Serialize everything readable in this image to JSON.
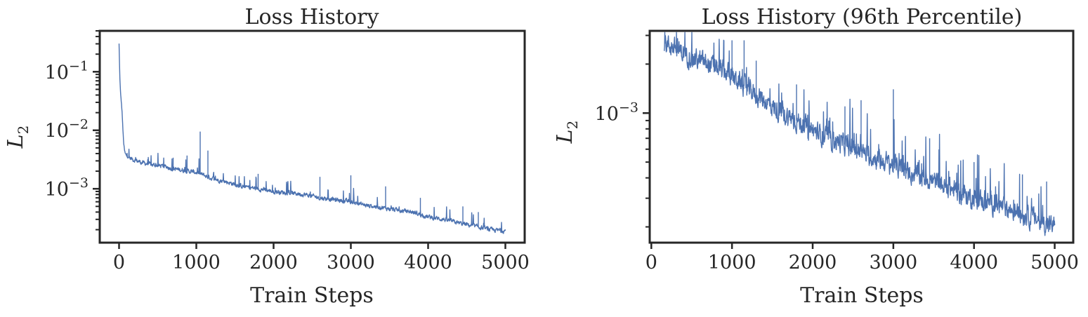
{
  "chart_data": [
    {
      "type": "line",
      "title": "Loss History",
      "xlabel": "Train Steps",
      "ylabel": "L",
      "ylabel_sub": "2",
      "xscale": "linear",
      "yscale": "log",
      "xlim": [
        -250,
        5250
      ],
      "ylim": [
        0.00012,
        0.5
      ],
      "xticks": [
        0,
        1000,
        2000,
        3000,
        4000,
        5000
      ],
      "xtick_labels": [
        "0",
        "1000",
        "2000",
        "3000",
        "4000",
        "5000"
      ],
      "yticks_major": [
        {
          "value": 0.1,
          "base": "10",
          "exp": "−1"
        },
        {
          "value": 0.01,
          "base": "10",
          "exp": "−2"
        },
        {
          "value": 0.001,
          "base": "10",
          "exp": "−3"
        }
      ],
      "grid": false,
      "legend": "none",
      "line_color": "#4c72b0",
      "series": [
        {
          "x": [
            0,
            5,
            10,
            20,
            30,
            40,
            50,
            60,
            70,
            80,
            100,
            150,
            200,
            300,
            400,
            500,
            600,
            700,
            800,
            900,
            1000,
            1100,
            1200,
            1400,
            1600,
            1800,
            2000,
            2200,
            2400,
            2600,
            2800,
            3000,
            3200,
            3400,
            3600,
            3800,
            4000,
            4200,
            4400,
            4600,
            4800,
            5000
          ],
          "y": [
            0.3,
            0.15,
            0.08,
            0.04,
            0.03,
            0.02,
            0.01,
            0.006,
            0.0045,
            0.004,
            0.0036,
            0.0033,
            0.0031,
            0.0028,
            0.0026,
            0.0025,
            0.0024,
            0.0022,
            0.0021,
            0.002,
            0.0019,
            0.0017,
            0.0015,
            0.0013,
            0.0011,
            0.001,
            0.0009,
            0.00085,
            0.0008,
            0.0007,
            0.00065,
            0.0006,
            0.00052,
            0.00048,
            0.00043,
            0.0004,
            0.00033,
            0.0003,
            0.00026,
            0.00023,
            0.0002,
            0.00019
          ]
        }
      ],
      "spikes": [
        {
          "x": 1050,
          "y": 0.0095
        },
        {
          "x": 1150,
          "y": 0.0045
        },
        {
          "x": 700,
          "y": 0.0034
        },
        {
          "x": 880,
          "y": 0.0037
        },
        {
          "x": 1800,
          "y": 0.0018
        },
        {
          "x": 2600,
          "y": 0.0016
        },
        {
          "x": 3000,
          "y": 0.0017
        },
        {
          "x": 3450,
          "y": 0.0011
        },
        {
          "x": 3900,
          "y": 0.0007
        },
        {
          "x": 4450,
          "y": 0.0005
        },
        {
          "x": 4650,
          "y": 0.0004
        }
      ]
    },
    {
      "type": "line",
      "title": "Loss History (96th Percentile)",
      "xlabel": "Train Steps",
      "ylabel": "L",
      "ylabel_sub": "2",
      "xscale": "linear",
      "yscale": "log",
      "xlim": [
        -20,
        5230
      ],
      "ylim": [
        0.00016,
        0.0032
      ],
      "xticks": [
        0,
        1000,
        2000,
        3000,
        4000,
        5000
      ],
      "xtick_labels": [
        "0",
        "1000",
        "2000",
        "3000",
        "4000",
        "5000"
      ],
      "yticks_major": [
        {
          "value": 0.001,
          "base": "10",
          "exp": "−3"
        }
      ],
      "grid": false,
      "legend": "none",
      "line_color": "#4c72b0",
      "series": [
        {
          "x": [
            160,
            300,
            500,
            700,
            900,
            1000,
            1200,
            1400,
            1600,
            1800,
            2000,
            2200,
            2400,
            2600,
            2800,
            3000,
            3200,
            3400,
            3600,
            3800,
            4000,
            4200,
            4400,
            4600,
            4800,
            5000
          ],
          "y": [
            0.0027,
            0.0025,
            0.0022,
            0.002,
            0.0018,
            0.0017,
            0.0014,
            0.0012,
            0.001,
            0.0009,
            0.00078,
            0.0007,
            0.00064,
            0.00058,
            0.00052,
            0.00048,
            0.00043,
            0.0004,
            0.00036,
            0.00033,
            0.0003,
            0.00028,
            0.00026,
            0.00024,
            0.00022,
            0.0002
          ]
        }
      ],
      "spikes": [
        {
          "x": 900,
          "y": 0.0028
        },
        {
          "x": 1000,
          "y": 0.0028
        },
        {
          "x": 1150,
          "y": 0.0028
        },
        {
          "x": 1300,
          "y": 0.0021
        },
        {
          "x": 1800,
          "y": 0.0015
        },
        {
          "x": 2400,
          "y": 0.0011
        },
        {
          "x": 2600,
          "y": 0.0012
        },
        {
          "x": 3000,
          "y": 0.0014
        },
        {
          "x": 3450,
          "y": 0.0007
        },
        {
          "x": 4000,
          "y": 0.0005
        },
        {
          "x": 4600,
          "y": 0.00042
        },
        {
          "x": 4900,
          "y": 0.00038
        }
      ]
    }
  ]
}
